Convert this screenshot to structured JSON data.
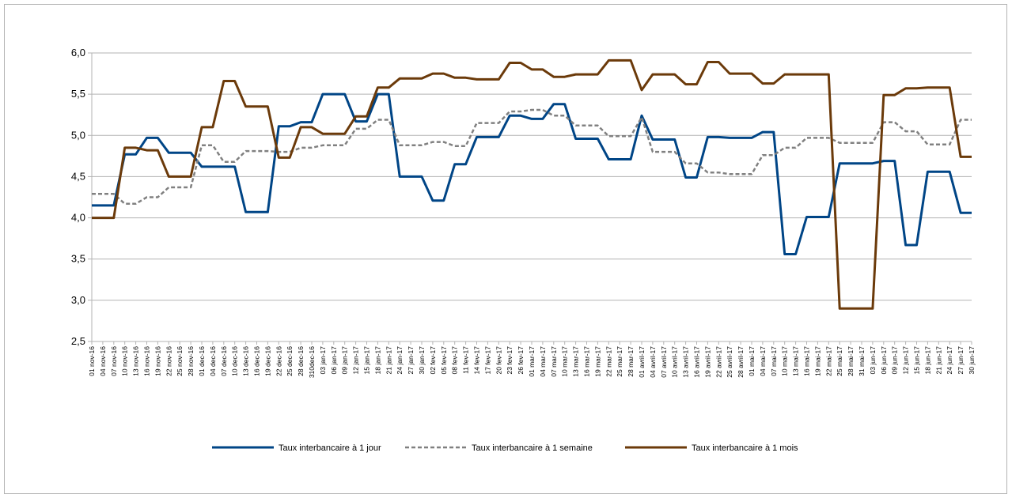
{
  "chart_data": {
    "type": "line",
    "categories": [
      "01 nov-16",
      "04 nov-16",
      "07 nov-16",
      "10 nov-16",
      "13 nov-16",
      "16 nov-16",
      "19 nov-16",
      "22 nov-16",
      "25 nov-16",
      "28 nov-16",
      "01 dec-16",
      "04 dec-16",
      "07 dec-16",
      "10 dec-16",
      "13 dec-16",
      "16 dec-16",
      "19 dec-16",
      "22 dec-16",
      "25 dec-16",
      "28 dec-16",
      "310dec-16",
      "03 jan-17",
      "06 jan-17",
      "09 jan-17",
      "12 jan-17",
      "15 jan-17",
      "18 jan-17",
      "21 jan-17",
      "24 jan-17",
      "27 jan-17",
      "30 jan-17",
      "02 fev-17",
      "05 fev-17",
      "08 fev-17",
      "11 fev-17",
      "14 fev-17",
      "17 fev-17",
      "20 fev-17",
      "23 fev-17",
      "26 fev-17",
      "01 mar-17",
      "04 mar-17",
      "07 mar-17",
      "10 mar-17",
      "13 mar-17",
      "16 mar-17",
      "19 mar-17",
      "22 mar-17",
      "25 mar-17",
      "28 mar-17",
      "01 avril-17",
      "04 avril-17",
      "07 avril-17",
      "10 avril-17",
      "13 avril-17",
      "16 avril-17",
      "19 avril-17",
      "22 avril-17",
      "25 avril-17",
      "28 avril-17",
      "01 mai-17",
      "04 mai-17",
      "07 mai-17",
      "10 mai-17",
      "13 mai-17",
      "16 mai-17",
      "19 mai-17",
      "22 mai-17",
      "25 mai-17",
      "28 mai-17",
      "31 mai-17",
      "03 jun-17",
      "06 jun-17",
      "09 jun-17",
      "12 jun-17",
      "15 jun-17",
      "18 jun-17",
      "21 jun-17",
      "24 jun-17",
      "27 jun-17",
      "30 jun-17"
    ],
    "series": [
      {
        "name": "Taux interbancaire à 1 jour",
        "color": "#004586",
        "dash": false,
        "values": [
          4.15,
          4.15,
          4.15,
          4.77,
          4.77,
          4.97,
          4.97,
          4.79,
          4.79,
          4.79,
          4.62,
          4.62,
          4.62,
          4.62,
          4.07,
          4.07,
          4.07,
          5.11,
          5.11,
          5.16,
          5.16,
          5.5,
          5.5,
          5.5,
          5.17,
          5.17,
          5.5,
          5.5,
          4.5,
          4.5,
          4.5,
          4.21,
          4.21,
          4.65,
          4.65,
          4.98,
          4.98,
          4.98,
          5.24,
          5.24,
          5.2,
          5.2,
          5.38,
          5.38,
          4.96,
          4.96,
          4.96,
          4.71,
          4.71,
          4.71,
          5.24,
          4.95,
          4.95,
          4.95,
          4.49,
          4.49,
          4.98,
          4.98,
          4.97,
          4.97,
          4.97,
          5.04,
          5.04,
          3.56,
          3.56,
          4.01,
          4.01,
          4.01,
          4.66,
          4.66,
          4.66,
          4.66,
          4.69,
          4.69,
          3.67,
          3.67,
          4.56,
          4.56,
          4.56,
          4.06,
          4.06
        ]
      },
      {
        "name": "Taux interbancaire à 1 semaine",
        "color": "#808080",
        "dash": true,
        "values": [
          4.29,
          4.29,
          4.29,
          4.17,
          4.17,
          4.25,
          4.25,
          4.37,
          4.37,
          4.37,
          4.88,
          4.88,
          4.68,
          4.68,
          4.81,
          4.81,
          4.81,
          4.8,
          4.8,
          4.85,
          4.85,
          4.88,
          4.88,
          4.88,
          5.08,
          5.08,
          5.19,
          5.19,
          4.88,
          4.88,
          4.88,
          4.92,
          4.92,
          4.87,
          4.87,
          5.15,
          5.15,
          5.15,
          5.29,
          5.29,
          5.31,
          5.31,
          5.24,
          5.24,
          5.12,
          5.12,
          5.12,
          4.99,
          4.99,
          4.99,
          5.22,
          4.8,
          4.8,
          4.8,
          4.66,
          4.66,
          4.55,
          4.55,
          4.53,
          4.53,
          4.53,
          4.76,
          4.76,
          4.85,
          4.85,
          4.97,
          4.97,
          4.97,
          4.91,
          4.91,
          4.91,
          4.91,
          5.16,
          5.16,
          5.05,
          5.05,
          4.89,
          4.89,
          4.89,
          5.19,
          5.19
        ]
      },
      {
        "name": "Taux interbancaire à 1 mois",
        "color": "#6b3a0a",
        "dash": false,
        "values": [
          4.0,
          4.0,
          4.0,
          4.85,
          4.85,
          4.82,
          4.82,
          4.5,
          4.5,
          4.5,
          5.1,
          5.1,
          5.66,
          5.66,
          5.35,
          5.35,
          5.35,
          4.73,
          4.73,
          5.1,
          5.1,
          5.02,
          5.02,
          5.02,
          5.23,
          5.23,
          5.58,
          5.58,
          5.69,
          5.69,
          5.69,
          5.75,
          5.75,
          5.7,
          5.7,
          5.68,
          5.68,
          5.68,
          5.88,
          5.88,
          5.8,
          5.8,
          5.71,
          5.71,
          5.74,
          5.74,
          5.74,
          5.91,
          5.91,
          5.91,
          5.55,
          5.74,
          5.74,
          5.74,
          5.62,
          5.62,
          5.89,
          5.89,
          5.75,
          5.75,
          5.75,
          5.63,
          5.63,
          5.74,
          5.74,
          5.74,
          5.74,
          5.74,
          2.9,
          2.9,
          2.9,
          2.9,
          5.49,
          5.49,
          5.57,
          5.57,
          5.58,
          5.58,
          5.58,
          4.74,
          4.74
        ]
      }
    ],
    "ylim": [
      2.5,
      6.0
    ],
    "yticks": [
      {
        "value": 2.5,
        "label": "2,5"
      },
      {
        "value": 3.0,
        "label": "3,0"
      },
      {
        "value": 3.5,
        "label": "3,5"
      },
      {
        "value": 4.0,
        "label": "4,0"
      },
      {
        "value": 4.5,
        "label": "4,5"
      },
      {
        "value": 5.0,
        "label": "5,0"
      },
      {
        "value": 5.5,
        "label": "5,5"
      },
      {
        "value": 6.0,
        "label": "6,0"
      }
    ],
    "grid": true,
    "legend": "bottom"
  }
}
